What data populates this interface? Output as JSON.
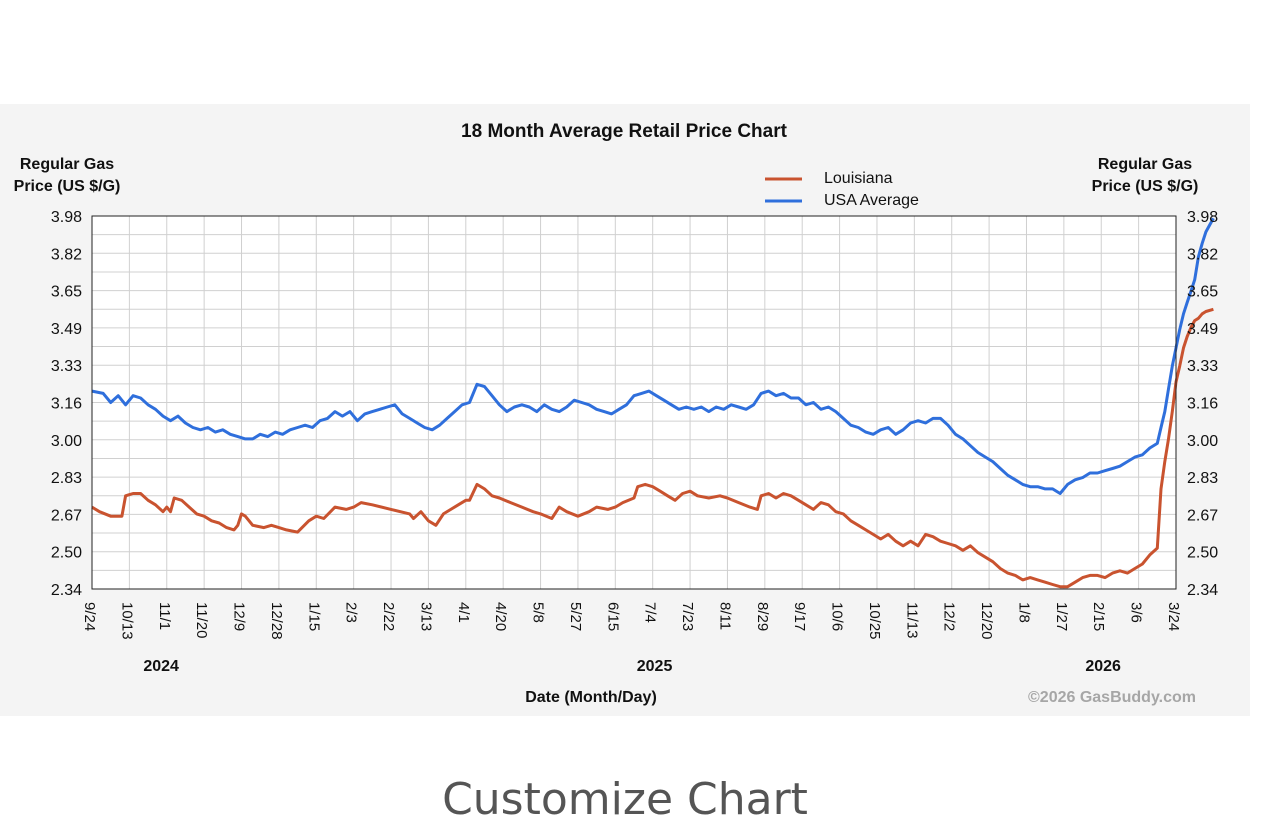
{
  "chart_data": {
    "type": "line",
    "title": "18 Month Average Retail Price Chart",
    "ylabel_left": [
      "Regular Gas",
      "Price (US $/G)"
    ],
    "ylabel_right": [
      "Regular Gas",
      "Price (US $/G)"
    ],
    "xlabel": "Date (Month/Day)",
    "ylim": [
      2.34,
      3.98
    ],
    "y_ticks": [
      "3.98",
      "3.82",
      "3.65",
      "3.49",
      "3.33",
      "3.16",
      "3.00",
      "2.83",
      "2.67",
      "2.50",
      "2.34"
    ],
    "x_ticks": [
      "9/24",
      "10/13",
      "11/1",
      "11/20",
      "12/9",
      "12/28",
      "1/15",
      "2/3",
      "2/22",
      "3/13",
      "4/1",
      "4/20",
      "5/8",
      "5/27",
      "6/15",
      "7/4",
      "7/23",
      "8/11",
      "8/29",
      "9/17",
      "10/6",
      "10/25",
      "11/13",
      "12/2",
      "12/20",
      "1/8",
      "1/27",
      "2/15",
      "3/6",
      "3/24"
    ],
    "years": [
      {
        "label": "2024",
        "at_tick": 1.85
      },
      {
        "label": "2025",
        "at_tick": 15.05
      },
      {
        "label": "2026",
        "at_tick": 27.05
      }
    ],
    "grid": true,
    "legend_position": "top-right",
    "series": [
      {
        "name": "Louisiana",
        "color": "#c9532f",
        "points": [
          [
            0,
            2.7
          ],
          [
            0.2,
            2.68
          ],
          [
            0.5,
            2.66
          ],
          [
            0.8,
            2.66
          ],
          [
            0.9,
            2.75
          ],
          [
            1.1,
            2.76
          ],
          [
            1.3,
            2.76
          ],
          [
            1.5,
            2.73
          ],
          [
            1.7,
            2.71
          ],
          [
            1.9,
            2.68
          ],
          [
            2.0,
            2.7
          ],
          [
            2.1,
            2.68
          ],
          [
            2.2,
            2.74
          ],
          [
            2.4,
            2.73
          ],
          [
            2.6,
            2.7
          ],
          [
            2.8,
            2.67
          ],
          [
            3.0,
            2.66
          ],
          [
            3.2,
            2.64
          ],
          [
            3.4,
            2.63
          ],
          [
            3.6,
            2.61
          ],
          [
            3.8,
            2.6
          ],
          [
            3.9,
            2.62
          ],
          [
            4.0,
            2.67
          ],
          [
            4.1,
            2.66
          ],
          [
            4.3,
            2.62
          ],
          [
            4.6,
            2.61
          ],
          [
            4.8,
            2.62
          ],
          [
            5.0,
            2.61
          ],
          [
            5.2,
            2.6
          ],
          [
            5.5,
            2.59
          ],
          [
            5.8,
            2.64
          ],
          [
            6.0,
            2.66
          ],
          [
            6.2,
            2.65
          ],
          [
            6.5,
            2.7
          ],
          [
            6.8,
            2.69
          ],
          [
            7.0,
            2.7
          ],
          [
            7.2,
            2.72
          ],
          [
            7.5,
            2.71
          ],
          [
            8.0,
            2.69
          ],
          [
            8.5,
            2.67
          ],
          [
            8.6,
            2.65
          ],
          [
            8.8,
            2.68
          ],
          [
            9.0,
            2.64
          ],
          [
            9.2,
            2.62
          ],
          [
            9.4,
            2.67
          ],
          [
            9.6,
            2.69
          ],
          [
            9.8,
            2.71
          ],
          [
            10.0,
            2.73
          ],
          [
            10.1,
            2.73
          ],
          [
            10.3,
            2.8
          ],
          [
            10.5,
            2.78
          ],
          [
            10.7,
            2.75
          ],
          [
            10.9,
            2.74
          ],
          [
            11.2,
            2.72
          ],
          [
            11.5,
            2.7
          ],
          [
            11.8,
            2.68
          ],
          [
            12.0,
            2.67
          ],
          [
            12.3,
            2.65
          ],
          [
            12.5,
            2.7
          ],
          [
            12.7,
            2.68
          ],
          [
            13.0,
            2.66
          ],
          [
            13.3,
            2.68
          ],
          [
            13.5,
            2.7
          ],
          [
            13.8,
            2.69
          ],
          [
            14.0,
            2.7
          ],
          [
            14.2,
            2.72
          ],
          [
            14.5,
            2.74
          ],
          [
            14.6,
            2.79
          ],
          [
            14.8,
            2.8
          ],
          [
            15.0,
            2.79
          ],
          [
            15.2,
            2.77
          ],
          [
            15.4,
            2.75
          ],
          [
            15.6,
            2.73
          ],
          [
            15.8,
            2.76
          ],
          [
            16.0,
            2.77
          ],
          [
            16.2,
            2.75
          ],
          [
            16.5,
            2.74
          ],
          [
            16.8,
            2.75
          ],
          [
            17.0,
            2.74
          ],
          [
            17.3,
            2.72
          ],
          [
            17.6,
            2.7
          ],
          [
            17.8,
            2.69
          ],
          [
            17.9,
            2.75
          ],
          [
            18.1,
            2.76
          ],
          [
            18.3,
            2.74
          ],
          [
            18.5,
            2.76
          ],
          [
            18.7,
            2.75
          ],
          [
            18.9,
            2.73
          ],
          [
            19.1,
            2.71
          ],
          [
            19.3,
            2.69
          ],
          [
            19.5,
            2.72
          ],
          [
            19.7,
            2.71
          ],
          [
            19.9,
            2.68
          ],
          [
            20.1,
            2.67
          ],
          [
            20.3,
            2.64
          ],
          [
            20.5,
            2.62
          ],
          [
            20.7,
            2.6
          ],
          [
            20.9,
            2.58
          ],
          [
            21.1,
            2.56
          ],
          [
            21.3,
            2.58
          ],
          [
            21.5,
            2.55
          ],
          [
            21.7,
            2.53
          ],
          [
            21.9,
            2.55
          ],
          [
            22.1,
            2.53
          ],
          [
            22.3,
            2.58
          ],
          [
            22.5,
            2.57
          ],
          [
            22.7,
            2.55
          ],
          [
            22.9,
            2.54
          ],
          [
            23.1,
            2.53
          ],
          [
            23.3,
            2.51
          ],
          [
            23.5,
            2.53
          ],
          [
            23.7,
            2.5
          ],
          [
            23.9,
            2.48
          ],
          [
            24.1,
            2.46
          ],
          [
            24.3,
            2.43
          ],
          [
            24.5,
            2.41
          ],
          [
            24.7,
            2.4
          ],
          [
            24.9,
            2.38
          ],
          [
            25.1,
            2.39
          ],
          [
            25.3,
            2.38
          ],
          [
            25.5,
            2.37
          ],
          [
            25.7,
            2.36
          ],
          [
            25.9,
            2.35
          ],
          [
            26.1,
            2.35
          ],
          [
            26.3,
            2.37
          ],
          [
            26.5,
            2.39
          ],
          [
            26.7,
            2.4
          ],
          [
            26.9,
            2.4
          ],
          [
            27.1,
            2.39
          ],
          [
            27.3,
            2.41
          ],
          [
            27.5,
            2.42
          ],
          [
            27.7,
            2.41
          ],
          [
            27.9,
            2.43
          ],
          [
            28.1,
            2.45
          ],
          [
            28.3,
            2.49
          ],
          [
            28.5,
            2.52
          ],
          [
            28.6,
            2.78
          ],
          [
            28.7,
            2.9
          ],
          [
            28.8,
            3.0
          ],
          [
            28.9,
            3.12
          ],
          [
            29.0,
            3.25
          ],
          [
            29.1,
            3.32
          ],
          [
            29.2,
            3.4
          ],
          [
            29.3,
            3.45
          ],
          [
            29.4,
            3.49
          ],
          [
            29.5,
            3.52
          ],
          [
            29.6,
            3.53
          ],
          [
            29.7,
            3.55
          ],
          [
            29.8,
            3.56
          ],
          [
            30.0,
            3.57
          ]
        ]
      },
      {
        "name": "USA Average",
        "color": "#2f6fdc",
        "points": [
          [
            0,
            3.21
          ],
          [
            0.3,
            3.2
          ],
          [
            0.5,
            3.16
          ],
          [
            0.7,
            3.19
          ],
          [
            0.9,
            3.15
          ],
          [
            1.1,
            3.19
          ],
          [
            1.3,
            3.18
          ],
          [
            1.5,
            3.15
          ],
          [
            1.7,
            3.13
          ],
          [
            1.9,
            3.1
          ],
          [
            2.1,
            3.08
          ],
          [
            2.3,
            3.1
          ],
          [
            2.5,
            3.07
          ],
          [
            2.7,
            3.05
          ],
          [
            2.9,
            3.04
          ],
          [
            3.1,
            3.05
          ],
          [
            3.3,
            3.03
          ],
          [
            3.5,
            3.04
          ],
          [
            3.7,
            3.02
          ],
          [
            3.9,
            3.01
          ],
          [
            4.1,
            3.0
          ],
          [
            4.3,
            3.0
          ],
          [
            4.5,
            3.02
          ],
          [
            4.7,
            3.01
          ],
          [
            4.9,
            3.03
          ],
          [
            5.1,
            3.02
          ],
          [
            5.3,
            3.04
          ],
          [
            5.5,
            3.05
          ],
          [
            5.7,
            3.06
          ],
          [
            5.9,
            3.05
          ],
          [
            6.1,
            3.08
          ],
          [
            6.3,
            3.09
          ],
          [
            6.5,
            3.12
          ],
          [
            6.7,
            3.1
          ],
          [
            6.9,
            3.12
          ],
          [
            7.1,
            3.08
          ],
          [
            7.3,
            3.11
          ],
          [
            7.5,
            3.12
          ],
          [
            7.7,
            3.13
          ],
          [
            7.9,
            3.14
          ],
          [
            8.1,
            3.15
          ],
          [
            8.3,
            3.11
          ],
          [
            8.5,
            3.09
          ],
          [
            8.7,
            3.07
          ],
          [
            8.9,
            3.05
          ],
          [
            9.1,
            3.04
          ],
          [
            9.3,
            3.06
          ],
          [
            9.5,
            3.09
          ],
          [
            9.7,
            3.12
          ],
          [
            9.9,
            3.15
          ],
          [
            10.1,
            3.16
          ],
          [
            10.3,
            3.24
          ],
          [
            10.5,
            3.23
          ],
          [
            10.7,
            3.19
          ],
          [
            10.9,
            3.15
          ],
          [
            11.1,
            3.12
          ],
          [
            11.3,
            3.14
          ],
          [
            11.5,
            3.15
          ],
          [
            11.7,
            3.14
          ],
          [
            11.9,
            3.12
          ],
          [
            12.1,
            3.15
          ],
          [
            12.3,
            3.13
          ],
          [
            12.5,
            3.12
          ],
          [
            12.7,
            3.14
          ],
          [
            12.9,
            3.17
          ],
          [
            13.1,
            3.16
          ],
          [
            13.3,
            3.15
          ],
          [
            13.5,
            3.13
          ],
          [
            13.7,
            3.12
          ],
          [
            13.9,
            3.11
          ],
          [
            14.1,
            3.13
          ],
          [
            14.3,
            3.15
          ],
          [
            14.5,
            3.19
          ],
          [
            14.7,
            3.2
          ],
          [
            14.9,
            3.21
          ],
          [
            15.1,
            3.19
          ],
          [
            15.3,
            3.17
          ],
          [
            15.5,
            3.15
          ],
          [
            15.7,
            3.13
          ],
          [
            15.9,
            3.14
          ],
          [
            16.1,
            3.13
          ],
          [
            16.3,
            3.14
          ],
          [
            16.5,
            3.12
          ],
          [
            16.7,
            3.14
          ],
          [
            16.9,
            3.13
          ],
          [
            17.1,
            3.15
          ],
          [
            17.3,
            3.14
          ],
          [
            17.5,
            3.13
          ],
          [
            17.7,
            3.15
          ],
          [
            17.9,
            3.2
          ],
          [
            18.1,
            3.21
          ],
          [
            18.3,
            3.19
          ],
          [
            18.5,
            3.2
          ],
          [
            18.7,
            3.18
          ],
          [
            18.9,
            3.18
          ],
          [
            19.1,
            3.15
          ],
          [
            19.3,
            3.16
          ],
          [
            19.5,
            3.13
          ],
          [
            19.7,
            3.14
          ],
          [
            19.9,
            3.12
          ],
          [
            20.1,
            3.09
          ],
          [
            20.3,
            3.06
          ],
          [
            20.5,
            3.05
          ],
          [
            20.7,
            3.03
          ],
          [
            20.9,
            3.02
          ],
          [
            21.1,
            3.04
          ],
          [
            21.3,
            3.05
          ],
          [
            21.5,
            3.02
          ],
          [
            21.7,
            3.04
          ],
          [
            21.9,
            3.07
          ],
          [
            22.1,
            3.08
          ],
          [
            22.3,
            3.07
          ],
          [
            22.5,
            3.09
          ],
          [
            22.7,
            3.09
          ],
          [
            22.9,
            3.06
          ],
          [
            23.1,
            3.02
          ],
          [
            23.3,
            3.0
          ],
          [
            23.5,
            2.97
          ],
          [
            23.7,
            2.94
          ],
          [
            23.9,
            2.92
          ],
          [
            24.1,
            2.9
          ],
          [
            24.3,
            2.87
          ],
          [
            24.5,
            2.84
          ],
          [
            24.7,
            2.82
          ],
          [
            24.9,
            2.8
          ],
          [
            25.1,
            2.79
          ],
          [
            25.3,
            2.79
          ],
          [
            25.5,
            2.78
          ],
          [
            25.7,
            2.78
          ],
          [
            25.9,
            2.76
          ],
          [
            26.1,
            2.8
          ],
          [
            26.3,
            2.82
          ],
          [
            26.5,
            2.83
          ],
          [
            26.7,
            2.85
          ],
          [
            26.9,
            2.85
          ],
          [
            27.1,
            2.86
          ],
          [
            27.3,
            2.87
          ],
          [
            27.5,
            2.88
          ],
          [
            27.7,
            2.9
          ],
          [
            27.9,
            2.92
          ],
          [
            28.1,
            2.93
          ],
          [
            28.3,
            2.96
          ],
          [
            28.5,
            2.98
          ],
          [
            28.6,
            3.05
          ],
          [
            28.7,
            3.12
          ],
          [
            28.8,
            3.22
          ],
          [
            28.9,
            3.32
          ],
          [
            29.0,
            3.4
          ],
          [
            29.1,
            3.48
          ],
          [
            29.2,
            3.55
          ],
          [
            29.3,
            3.6
          ],
          [
            29.4,
            3.65
          ],
          [
            29.5,
            3.7
          ],
          [
            29.6,
            3.8
          ],
          [
            29.7,
            3.86
          ],
          [
            29.8,
            3.91
          ],
          [
            29.9,
            3.94
          ],
          [
            30.0,
            3.97
          ]
        ]
      }
    ],
    "copyright": "©2026 GasBuddy.com"
  },
  "page": {
    "heading": "Customize Chart"
  }
}
